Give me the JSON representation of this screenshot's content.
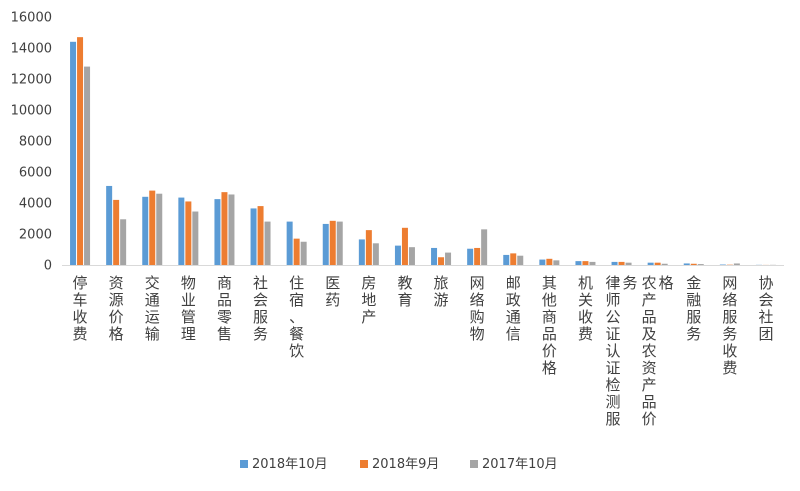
{
  "chart_data": {
    "type": "bar",
    "title": "",
    "xlabel": "",
    "ylabel": "",
    "ylim": [
      0,
      16000
    ],
    "yticks": [
      0,
      2000,
      4000,
      6000,
      8000,
      10000,
      12000,
      14000,
      16000
    ],
    "grid": false,
    "legend_position": "bottom",
    "categories": [
      "停车收费",
      "资源价格",
      "交通运输",
      "物业管理",
      "商品零售",
      "社会服务",
      "住宿、餐饮",
      "医药",
      "房地产",
      "教育",
      "旅游",
      "网络购物",
      "邮政通信",
      "其他商品价格",
      "机关收费",
      "律师公证认证检测服务",
      "农产品及农资产品价格",
      "金融服务",
      "网络服务收费",
      "协会社团"
    ],
    "series": [
      {
        "name": "2018年10月",
        "color": "#5b9bd5",
        "values": [
          14400,
          5100,
          4400,
          4350,
          4250,
          3650,
          2800,
          2650,
          1650,
          1250,
          1100,
          1050,
          650,
          350,
          250,
          200,
          150,
          100,
          30,
          10
        ]
      },
      {
        "name": "2018年9月",
        "color": "#ed7d31",
        "values": [
          14700,
          4200,
          4800,
          4100,
          4700,
          3800,
          1700,
          2850,
          2250,
          2400,
          500,
          1100,
          750,
          400,
          250,
          200,
          150,
          80,
          20,
          5
        ]
      },
      {
        "name": "2017年10月",
        "color": "#a5a5a5",
        "values": [
          12800,
          2950,
          4600,
          3450,
          4550,
          2800,
          1500,
          2800,
          1400,
          1150,
          800,
          2300,
          600,
          300,
          200,
          150,
          80,
          60,
          100,
          10
        ]
      }
    ]
  }
}
